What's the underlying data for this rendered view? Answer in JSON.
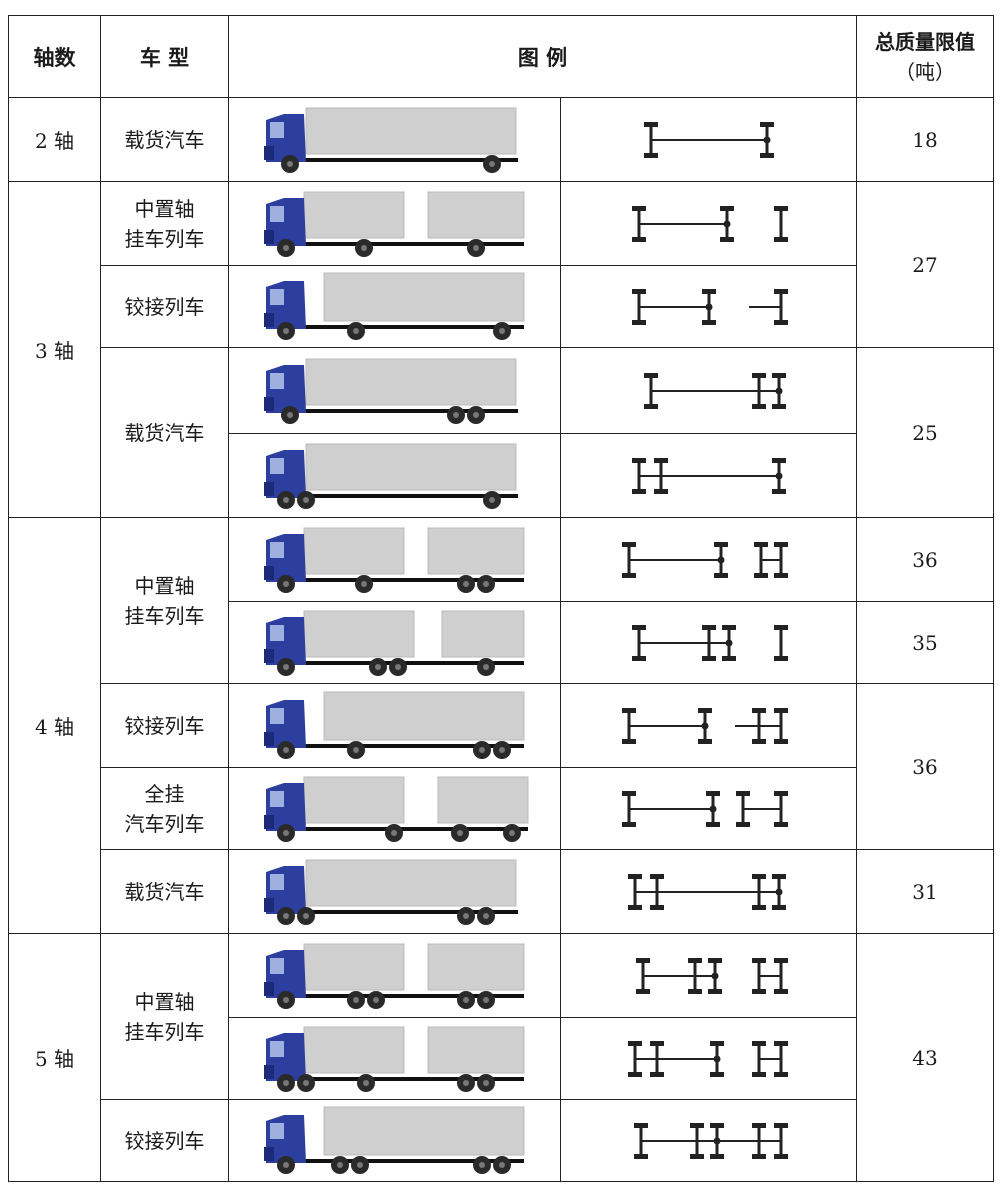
{
  "headers": {
    "axles": "轴数",
    "type": "车  型",
    "legend": "图      例",
    "limit": "总质量限值",
    "limit_unit": "（吨）"
  },
  "rows": [
    {
      "axles": "2 轴",
      "type": "载货汽车",
      "mass": "18",
      "truck": "rigid2",
      "diagram": "2axle"
    },
    {
      "axles": "3 轴",
      "type": "中置轴挂车列车",
      "mass": "27",
      "truck": "center-trailer-3",
      "diagram": "3axle-ct"
    },
    {
      "type": "铰接列车",
      "truck": "artic-3",
      "diagram": "3axle-art"
    },
    {
      "type": "载货汽车",
      "mass": "25",
      "truck": "rigid3-rear",
      "diagram": "3axle-rear"
    },
    {
      "truck": "rigid3-front",
      "diagram": "3axle-front"
    },
    {
      "axles": "4 轴",
      "type": "中置轴挂车列车",
      "mass": "36",
      "truck": "center-trailer-4a",
      "diagram": "4axle-ct-a"
    },
    {
      "mass": "35",
      "truck": "center-trailer-4b",
      "diagram": "4axle-ct-b"
    },
    {
      "type": "铰接列车",
      "mass": "36",
      "truck": "artic-4",
      "diagram": "4axle-art"
    },
    {
      "type": "全挂汽车列车",
      "truck": "full-trailer-4",
      "diagram": "4axle-full"
    },
    {
      "type": "载货汽车",
      "mass": "31",
      "truck": "rigid4",
      "diagram": "4axle-rigid"
    },
    {
      "axles": "5 轴",
      "type": "中置轴挂车列车",
      "mass": "43",
      "truck": "center-trailer-5a",
      "diagram": "5axle-ct-a"
    },
    {
      "truck": "center-trailer-5b",
      "diagram": "5axle-ct-b"
    },
    {
      "type": "铰接列车",
      "truck": "artic-5",
      "diagram": "5axle-art"
    }
  ],
  "colors": {
    "cab": "#2d3f9e",
    "cab_dark": "#1d2a7a",
    "cargo": "#cfcfcf",
    "wheel": "#2a2a2a",
    "border": "#222222"
  }
}
